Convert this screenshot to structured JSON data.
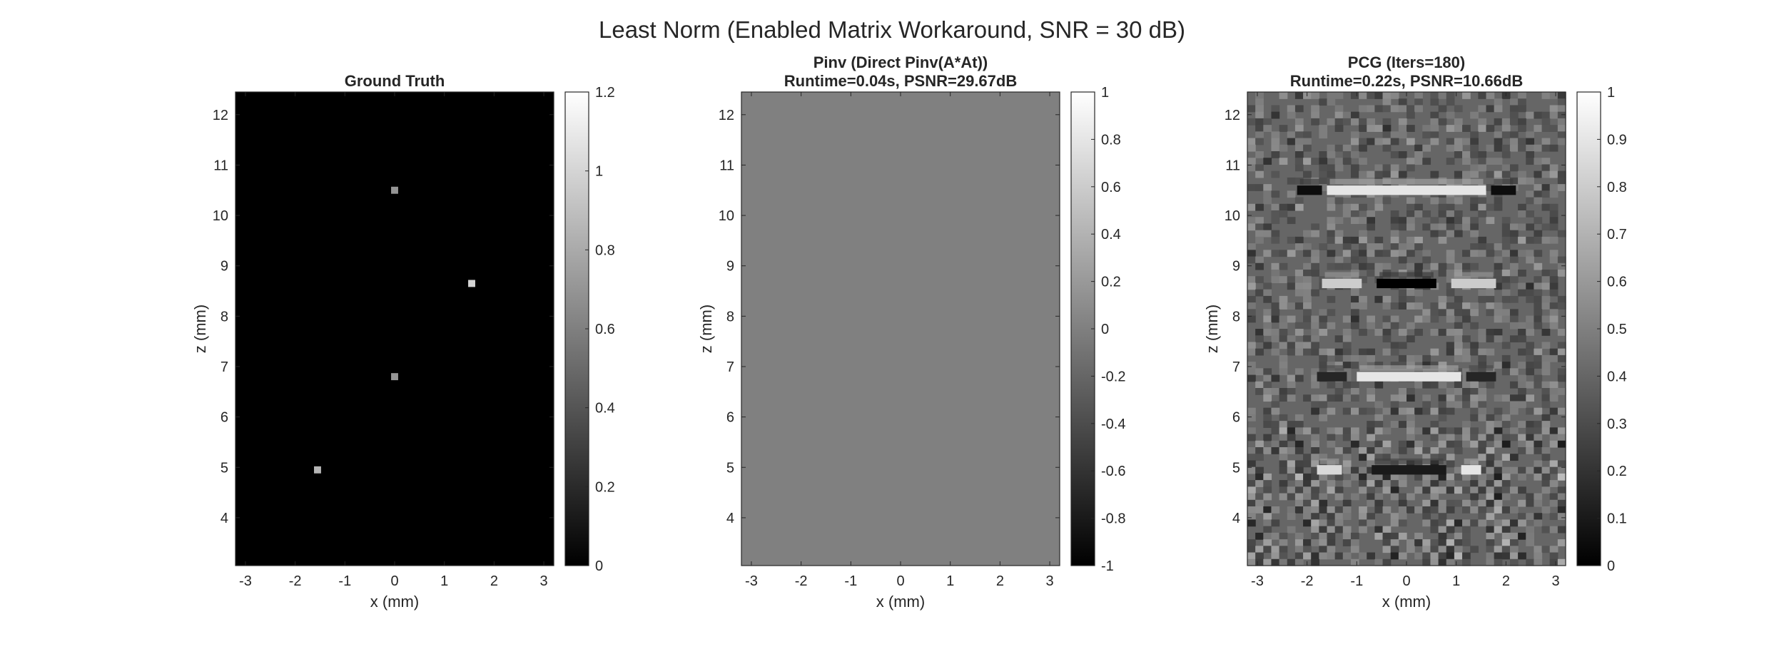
{
  "figure": {
    "suptitle": "Least Norm (Enabled Matrix Workaround, SNR = 30 dB)"
  },
  "chart_data": [
    {
      "type": "heatmap",
      "title": [
        "Ground Truth"
      ],
      "xlabel": "x (mm)",
      "ylabel": "z (mm)",
      "xlim": [
        -3.2,
        3.2
      ],
      "ylim": [
        3.05,
        12.45
      ],
      "xticks": [
        -3,
        -2,
        -1,
        0,
        1,
        2,
        3
      ],
      "yticks": [
        4,
        5,
        6,
        7,
        8,
        9,
        10,
        11,
        12
      ],
      "colormap": "gray",
      "clim": [
        0,
        1.2
      ],
      "colorbar_ticks": [
        0,
        0.2,
        0.4,
        0.6,
        0.8,
        1,
        1.2
      ],
      "background_value": 0,
      "points": [
        {
          "x": 0.0,
          "z": 10.5,
          "value": 0.7
        },
        {
          "x": 1.55,
          "z": 8.65,
          "value": 1.0
        },
        {
          "x": 0.0,
          "z": 6.8,
          "value": 0.7
        },
        {
          "x": -1.55,
          "z": 4.95,
          "value": 0.85
        }
      ]
    },
    {
      "type": "heatmap",
      "title": [
        "Pinv (Direct Pinv(A*At))",
        "Runtime=0.04s, PSNR=29.67dB"
      ],
      "xlabel": "x (mm)",
      "ylabel": "z (mm)",
      "xlim": [
        -3.2,
        3.2
      ],
      "ylim": [
        3.05,
        12.45
      ],
      "xticks": [
        -3,
        -2,
        -1,
        0,
        1,
        2,
        3
      ],
      "yticks": [
        4,
        5,
        6,
        7,
        8,
        9,
        10,
        11,
        12
      ],
      "colormap": "gray",
      "clim": [
        -1,
        1
      ],
      "colorbar_ticks": [
        -1,
        -0.8,
        -0.6,
        -0.4,
        -0.2,
        0,
        0.2,
        0.4,
        0.6,
        0.8,
        1
      ],
      "background_value": 0,
      "points": []
    },
    {
      "type": "heatmap",
      "title": [
        "PCG (Iters=180)",
        "Runtime=0.22s, PSNR=10.66dB"
      ],
      "xlabel": "x (mm)",
      "ylabel": "z (mm)",
      "xlim": [
        -3.2,
        3.2
      ],
      "ylim": [
        3.05,
        12.45
      ],
      "xticks": [
        -3,
        -2,
        -1,
        0,
        1,
        2,
        3
      ],
      "yticks": [
        4,
        5,
        6,
        7,
        8,
        9,
        10,
        11,
        12
      ],
      "colormap": "gray",
      "clim": [
        0,
        1
      ],
      "colorbar_ticks": [
        0,
        0.1,
        0.2,
        0.3,
        0.4,
        0.5,
        0.6,
        0.7,
        0.8,
        0.9,
        1
      ],
      "background_value": 0.4,
      "features": [
        {
          "z": 10.5,
          "x_range": [
            -1.6,
            1.6
          ],
          "value": 0.9
        },
        {
          "z": 10.5,
          "x_range": [
            -2.2,
            -1.7
          ],
          "value": 0.05
        },
        {
          "z": 10.5,
          "x_range": [
            1.7,
            2.2
          ],
          "value": 0.05
        },
        {
          "z": 8.65,
          "x_range": [
            -0.6,
            0.6
          ],
          "value": 0.0
        },
        {
          "z": 8.65,
          "x_range": [
            -1.7,
            -0.9
          ],
          "value": 0.8
        },
        {
          "z": 8.65,
          "x_range": [
            0.9,
            1.8
          ],
          "value": 0.8
        },
        {
          "z": 6.8,
          "x_range": [
            -1.0,
            1.1
          ],
          "value": 0.9
        },
        {
          "z": 6.8,
          "x_range": [
            -1.8,
            -1.2
          ],
          "value": 0.15
        },
        {
          "z": 6.8,
          "x_range": [
            1.2,
            1.8
          ],
          "value": 0.15
        },
        {
          "z": 4.95,
          "x_range": [
            -1.8,
            -1.3
          ],
          "value": 0.85
        },
        {
          "z": 4.95,
          "x_range": [
            1.1,
            1.5
          ],
          "value": 0.9
        },
        {
          "z": 4.95,
          "x_range": [
            -0.7,
            0.8
          ],
          "value": 0.1
        }
      ]
    }
  ]
}
